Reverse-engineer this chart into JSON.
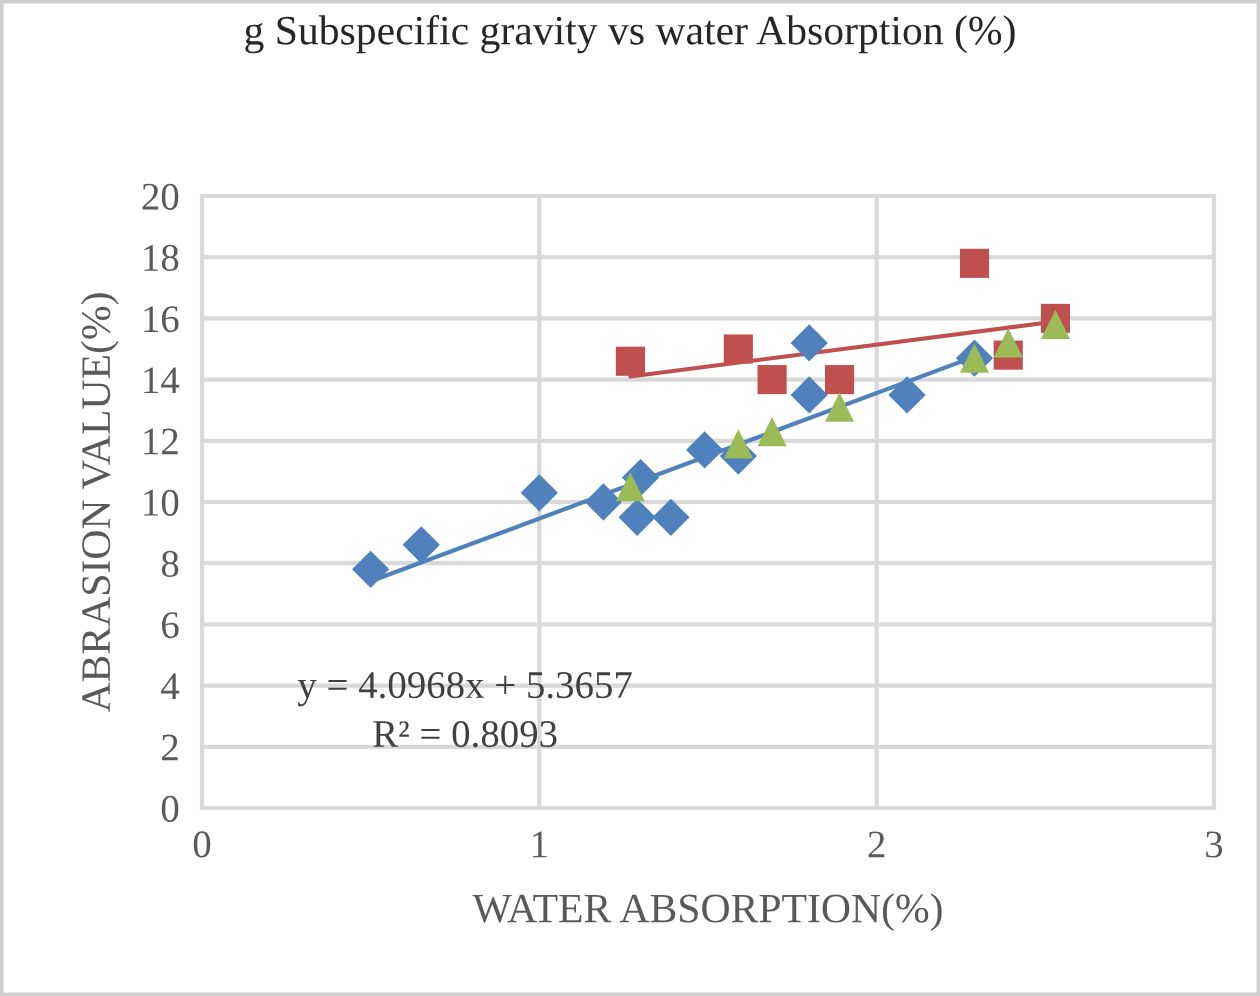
{
  "chart_data": {
    "type": "scatter",
    "title": "g Subspecific gravity vs water Absorption (%)",
    "xlabel": "WATER ABSORPTION(%)",
    "ylabel": "ABRASION VALUE(%)",
    "xlim": [
      0,
      3
    ],
    "xticks": [
      0,
      1,
      2,
      3
    ],
    "ylim": [
      0,
      20
    ],
    "yticks": [
      0,
      2,
      4,
      6,
      8,
      10,
      12,
      14,
      16,
      18,
      20
    ],
    "grid": true,
    "legend": false,
    "series": [
      {
        "marker": "diamond",
        "color": "#4f81bd",
        "x": [
          0.5,
          0.65,
          1.0,
          1.19,
          1.29,
          1.3,
          1.39,
          1.49,
          1.59,
          1.8,
          1.8,
          2.09,
          2.29
        ],
        "values": [
          7.8,
          8.6,
          10.3,
          10.0,
          9.5,
          10.8,
          9.5,
          11.7,
          11.5,
          15.2,
          13.5,
          13.5,
          14.7
        ]
      },
      {
        "marker": "square",
        "color": "#c0504d",
        "x": [
          1.27,
          1.59,
          1.69,
          1.89,
          2.29,
          2.39,
          2.53
        ],
        "values": [
          14.6,
          15.0,
          14.0,
          14.0,
          17.8,
          14.8,
          16.0
        ]
      },
      {
        "marker": "triangle",
        "color": "#9bbb59",
        "x": [
          1.27,
          1.59,
          1.69,
          1.89,
          2.29,
          2.39,
          2.53
        ],
        "values": [
          10.5,
          11.9,
          12.3,
          13.1,
          14.7,
          15.2,
          15.8
        ]
      },
      {
        "type": "line",
        "marker": "none",
        "color": "#4f81bd",
        "x": [
          0.5,
          2.29
        ],
        "values": [
          7.41,
          14.75
        ]
      },
      {
        "type": "line",
        "marker": "none",
        "color": "#c0504d",
        "x": [
          1.27,
          2.53
        ],
        "values": [
          14.1,
          15.9
        ]
      }
    ],
    "annotations": [
      "y = 4.0968x + 5.3657",
      "R² = 0.8093"
    ]
  }
}
